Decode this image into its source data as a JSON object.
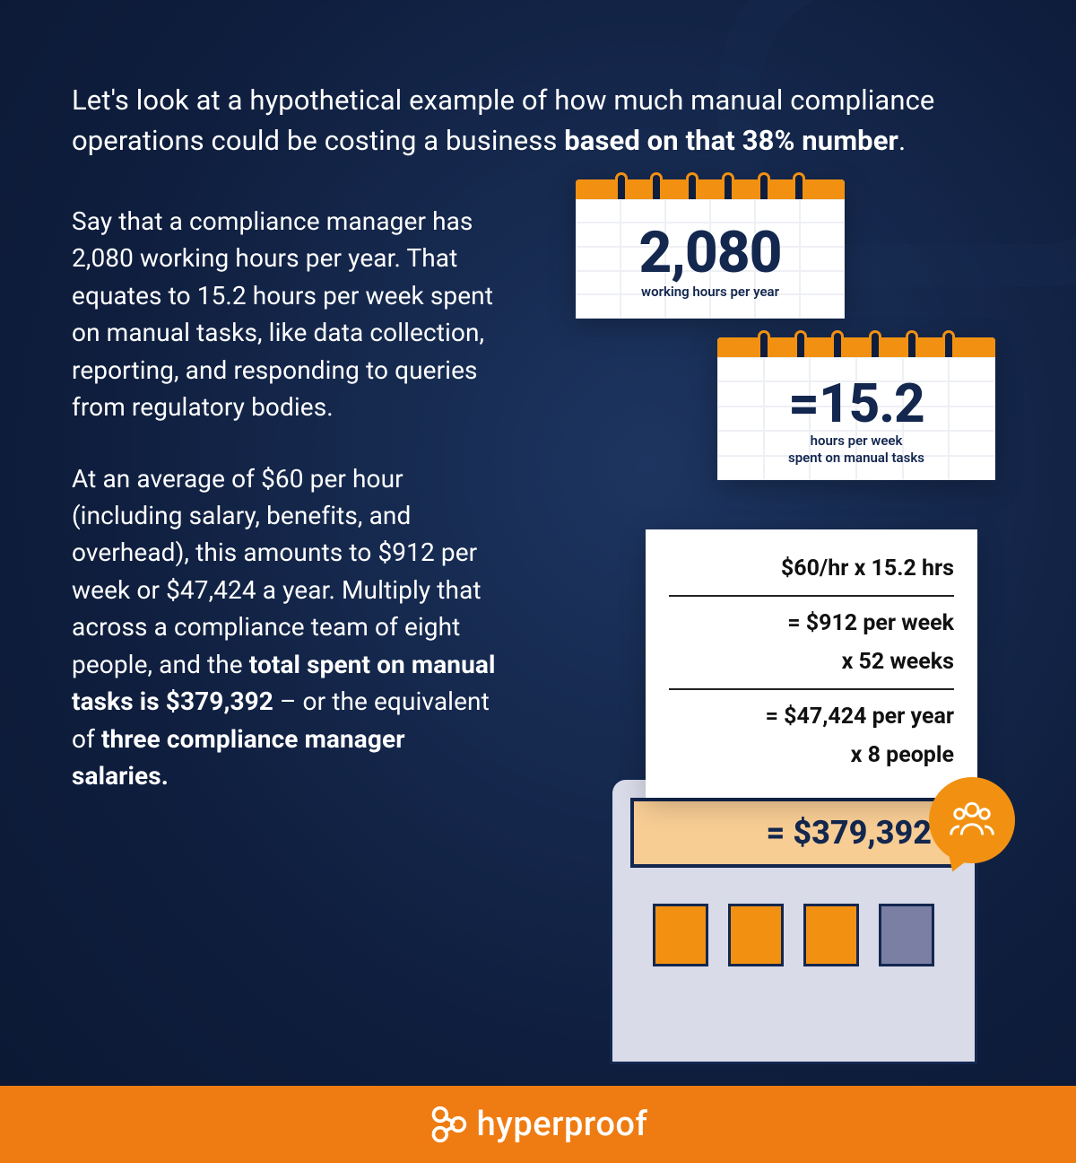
{
  "colors": {
    "bg_dark": "#0f1e3e",
    "bg_mid": "#1d3560",
    "accent_orange": "#f29111",
    "footer_orange": "#ef7c12",
    "calc_body": "#d9dbe8",
    "calc_screen": "#f8cd94",
    "text_navy": "#13274f",
    "white": "#ffffff"
  },
  "intro": {
    "prefix": "Let's look at a hypothetical example of how much manual compliance operations could be costing a business ",
    "bold": "based on that 38% number",
    "suffix": "."
  },
  "para1": "Say that a compliance manager has 2,080 working hours per year. That equates to 15.2 hours per week spent on manual tasks, like data collection, reporting, and responding to queries from regulatory bodies.",
  "para2": {
    "p1": "At an average of $60 per hour (including salary, benefits, and overhead), this amounts to $912 per week or $47,424 a year. Multiply that across a compliance team of eight people, and the ",
    "b1": "total spent on manual tasks is $379,392",
    "p2": " – or the equivalent of ",
    "b2": "three compliance manager salaries.",
    "p3": ""
  },
  "cal1": {
    "value": "2,080",
    "sub": "working hours per year"
  },
  "cal2": {
    "value": "=15.2",
    "sub_l1": "hours per week",
    "sub_l2": "spent on manual tasks"
  },
  "receipt": {
    "r1": "$60/hr x 15.2 hrs",
    "r2": "= $912 per week",
    "r3": "x 52 weeks",
    "r4": "= $47,424 per year",
    "r5": "x 8 people"
  },
  "calc": {
    "result": "= $379,392"
  },
  "footer": {
    "brand": "hyperproof"
  }
}
